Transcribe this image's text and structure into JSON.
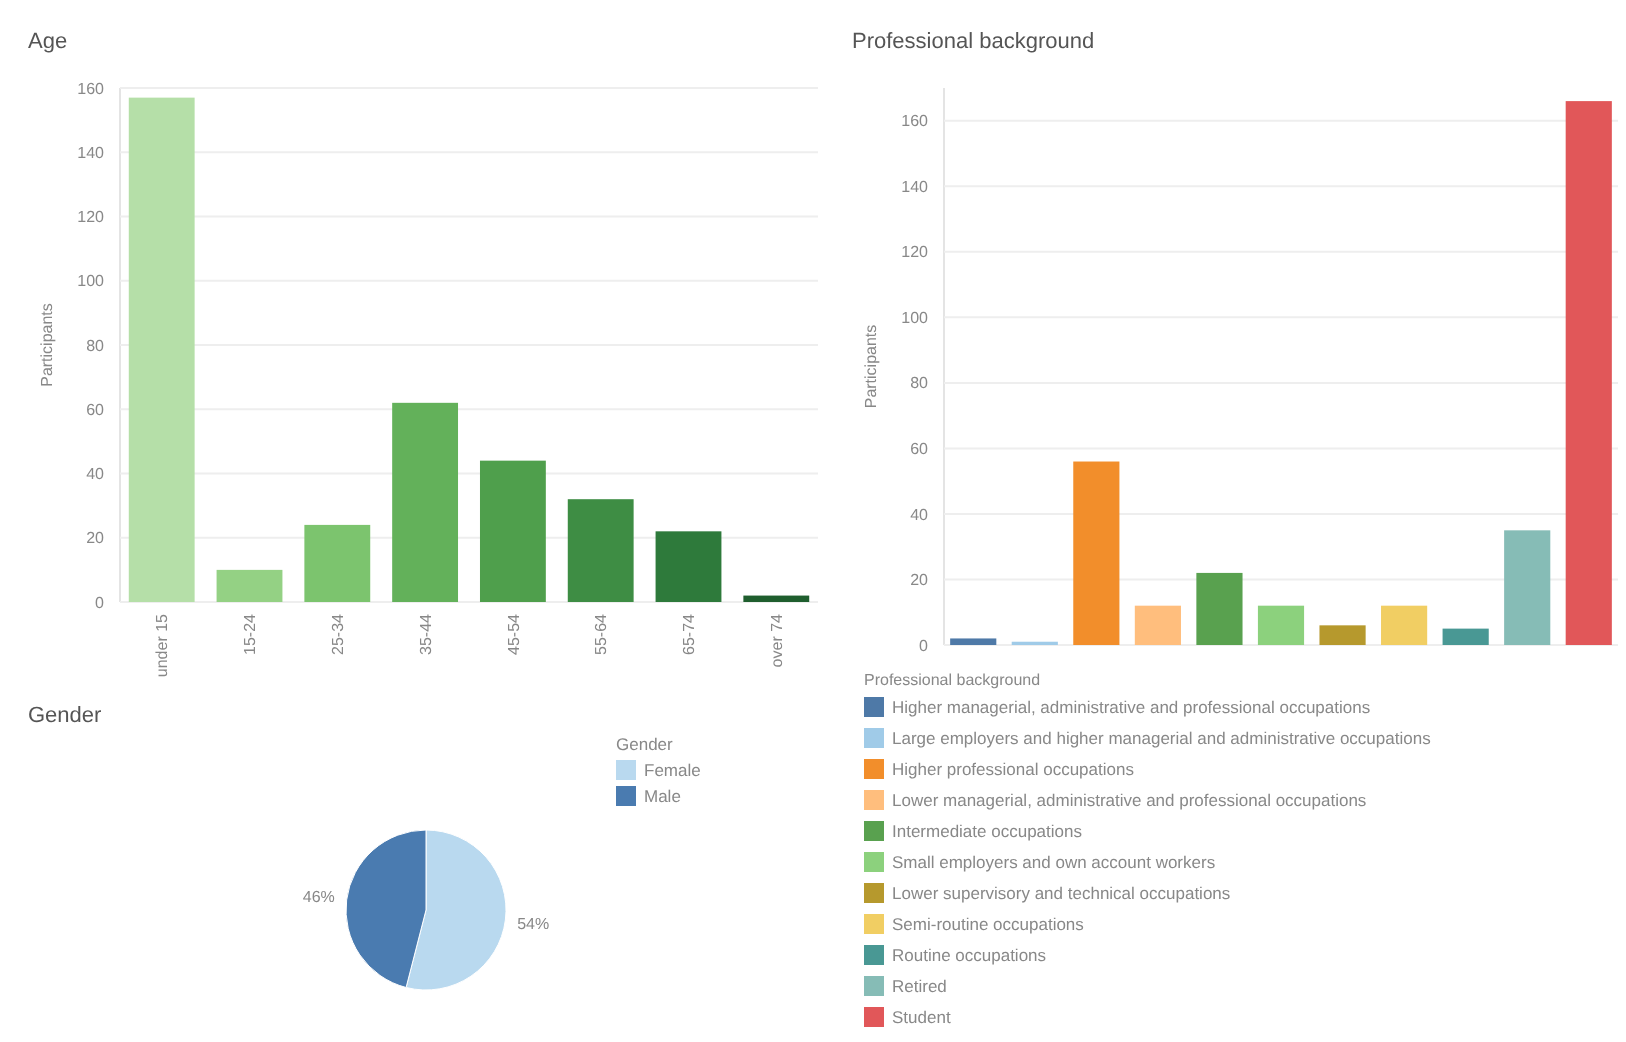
{
  "chart_data": [
    {
      "type": "bar",
      "title": "Age",
      "ylabel": "Participants",
      "categories": [
        "under 15",
        "15-24",
        "25-34",
        "35-44",
        "45-54",
        "55-64",
        "65-74",
        "over 74"
      ],
      "values": [
        157,
        10,
        24,
        62,
        44,
        32,
        22,
        2
      ],
      "colors": [
        "#b5dfa8",
        "#94d184",
        "#7cc46e",
        "#63b15a",
        "#4f9f4c",
        "#3e8d44",
        "#2e7a3b",
        "#1f5e2e"
      ],
      "ylim": [
        0,
        160
      ],
      "yticks": [
        0,
        20,
        40,
        60,
        80,
        100,
        120,
        140,
        160
      ],
      "grid": "y"
    },
    {
      "type": "bar",
      "title": "Professional background",
      "ylabel": "Participants",
      "legend_title": "Professional background",
      "legend": "bottom",
      "stacked": true,
      "categories": [
        null,
        null,
        null,
        null,
        null,
        null,
        null,
        null,
        null,
        null,
        null
      ],
      "series": [
        {
          "name": "Higher managerial, administrative and professional occupations",
          "color": "#4e79a7",
          "values": [
            2,
            null,
            null,
            null,
            null,
            null,
            null,
            null,
            null,
            null,
            null
          ]
        },
        {
          "name": "Large employers and higher managerial and administrative occupations",
          "color": "#a0cbe8",
          "values": [
            null,
            1,
            null,
            null,
            null,
            null,
            null,
            null,
            null,
            null,
            null
          ]
        },
        {
          "name": "Higher professional occupations",
          "color": "#f28e2b",
          "values": [
            null,
            null,
            56,
            null,
            null,
            null,
            null,
            null,
            null,
            null,
            null
          ]
        },
        {
          "name": "Lower managerial, administrative and professional occupations",
          "color": "#ffbe7d",
          "values": [
            null,
            null,
            null,
            12,
            null,
            null,
            null,
            null,
            null,
            null,
            null
          ]
        },
        {
          "name": "Intermediate occupations",
          "color": "#59a14f",
          "values": [
            null,
            null,
            null,
            null,
            22,
            null,
            null,
            null,
            null,
            null,
            null
          ]
        },
        {
          "name": "Small employers and own account workers",
          "color": "#8cd17d",
          "values": [
            null,
            null,
            null,
            null,
            null,
            12,
            null,
            null,
            null,
            null,
            null
          ]
        },
        {
          "name": "Lower supervisory and technical occupations",
          "color": "#b6992d",
          "values": [
            null,
            null,
            null,
            null,
            null,
            null,
            6,
            null,
            null,
            null,
            null
          ]
        },
        {
          "name": "Semi-routine occupations",
          "color": "#f1ce63",
          "values": [
            null,
            null,
            null,
            null,
            null,
            null,
            null,
            12,
            null,
            null,
            null
          ]
        },
        {
          "name": "Routine occupations",
          "color": "#499894",
          "values": [
            null,
            null,
            null,
            null,
            null,
            null,
            null,
            null,
            5,
            null,
            null
          ]
        },
        {
          "name": "Retired",
          "color": "#86bcb6",
          "values": [
            null,
            null,
            null,
            null,
            null,
            null,
            null,
            null,
            null,
            35,
            null
          ]
        },
        {
          "name": "Student",
          "color": "#e15759",
          "values": [
            null,
            null,
            null,
            null,
            null,
            null,
            null,
            null,
            null,
            null,
            166
          ]
        }
      ],
      "ylim": [
        0,
        170
      ],
      "yticks": [
        0,
        20,
        40,
        60,
        80,
        100,
        120,
        140,
        160
      ],
      "grid": "y"
    },
    {
      "type": "pie",
      "title": "Gender",
      "legend_title": "Gender",
      "legend": "right",
      "categories": [
        "Female",
        "Male"
      ],
      "values": [
        54,
        46
      ],
      "colors": [
        "#b9d9ef",
        "#4a7bb0"
      ],
      "value_labels": [
        "54%",
        "46%"
      ]
    }
  ]
}
